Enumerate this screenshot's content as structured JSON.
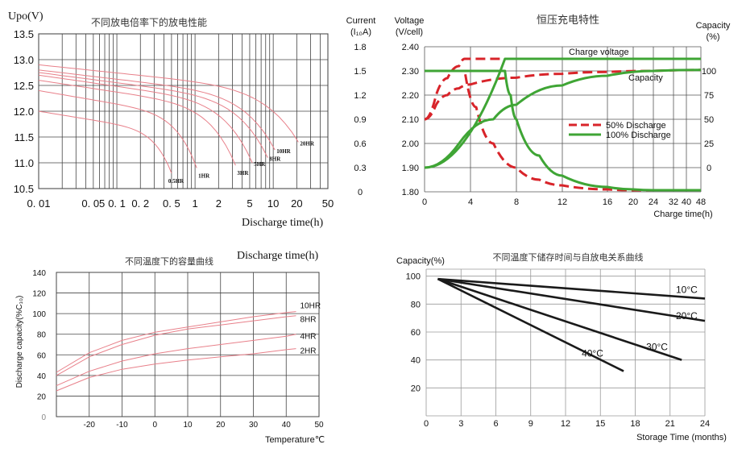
{
  "chart_data": [
    {
      "id": "discharge",
      "type": "line",
      "title": "不同放电倍率下的放电性能",
      "ylabel": "Upo(V)",
      "xlabel": "Discharge time(h)",
      "xscale": "log",
      "xlim": [
        0.01,
        50
      ],
      "ylim": [
        10.5,
        13.5
      ],
      "xticks": [
        0.01,
        0.05,
        0.1,
        0.2,
        0.5,
        1,
        2,
        5,
        10,
        20,
        50
      ],
      "xtick_labels": [
        "0. 01",
        "0. 05",
        "0. 1",
        "0. 2",
        "0. 5",
        "1",
        "2",
        "5",
        "10",
        "20",
        "50"
      ],
      "yticks": [
        10.5,
        11.0,
        11.5,
        12.0,
        12.5,
        13.0,
        13.5
      ],
      "ytick_labels": [
        "10.5",
        "11.0",
        "11.5",
        "12.0",
        "12.5",
        "13.0",
        "13.5"
      ],
      "grid_minor_x": [
        0.02,
        0.03,
        0.04,
        0.06,
        0.07,
        0.08,
        0.09,
        0.3,
        0.4,
        0.6,
        0.7,
        0.8,
        0.9,
        3,
        4,
        6,
        7,
        8,
        9,
        30,
        40
      ],
      "line_color": "#e8808a",
      "series": [
        {
          "name": "0.5HR",
          "label": "0.5HR",
          "v0": 12.0,
          "end": [
            0.5,
            10.8
          ]
        },
        {
          "name": "1HR",
          "label": "1HR",
          "v0": 12.4,
          "end": [
            1.05,
            10.9
          ]
        },
        {
          "name": "3HR",
          "label": "3HR",
          "v0": 12.6,
          "end": [
            3.3,
            10.95
          ]
        },
        {
          "name": "5HR",
          "label": "5HR",
          "v0": 12.7,
          "end": [
            5.4,
            11.0
          ]
        },
        {
          "name": "8HR",
          "label": "8HR",
          "v0": 12.75,
          "end": [
            8.5,
            11.1
          ]
        },
        {
          "name": "10HR",
          "label": "10HR",
          "v0": 12.8,
          "end": [
            10.5,
            11.25
          ]
        },
        {
          "name": "20HR",
          "label": "20HR",
          "v0": 12.9,
          "end": [
            21,
            11.4
          ]
        }
      ]
    },
    {
      "id": "charge",
      "type": "line",
      "title": "恒压充电特性",
      "left_axis_title": [
        "Current",
        "(I₁₀A)"
      ],
      "voltage_axis_title": [
        "Voltage",
        "(V/cell)"
      ],
      "right_axis_title": [
        "Capacity",
        "(%)"
      ],
      "xlabel": "Charge time(h)",
      "xticks": [
        0,
        4,
        8,
        12,
        16,
        20,
        24,
        32,
        40,
        48
      ],
      "xtick_labels": [
        "0",
        "4",
        "8",
        "12",
        "16",
        "20",
        "24",
        "32",
        "40",
        "48"
      ],
      "voltage_ticks": [
        1.8,
        1.9,
        2.0,
        2.1,
        2.2,
        2.3,
        2.4
      ],
      "voltage_tick_labels": [
        "1.80",
        "1.90",
        "2.00",
        "2.10",
        "2.20",
        "2.30",
        "2.40"
      ],
      "current_ticks": [
        0,
        0.3,
        0.6,
        0.9,
        1.2,
        1.5,
        1.8
      ],
      "current_tick_labels": [
        "0",
        "0.3",
        "0.6",
        "0.9",
        "1.2",
        "1.5",
        "1.8"
      ],
      "capacity_ticks": [
        0,
        25,
        50,
        75,
        100
      ],
      "capacity_tick_labels": [
        "0",
        "25",
        "50",
        "75",
        "100"
      ],
      "colors": {
        "discharge50": "#d8242a",
        "discharge100": "#3fa535"
      },
      "legend": [
        "50% Discharge",
        "100% Discharge"
      ],
      "annotations": [
        "Charge voltage",
        "Capacity"
      ],
      "series": [
        {
          "name": "50% charge voltage",
          "style": "dashed",
          "color": "discharge50",
          "x": [
            0,
            1,
            2,
            3,
            3.5,
            4,
            8,
            16,
            48
          ],
          "y": [
            2.1,
            2.2,
            2.27,
            2.32,
            2.35,
            2.35,
            2.35,
            2.35,
            2.35
          ]
        },
        {
          "name": "50% current",
          "style": "dashed",
          "color": "discharge50",
          "x": [
            0,
            3.5,
            4.5,
            6,
            8,
            10,
            12,
            16,
            20,
            24,
            48
          ],
          "y": [
            1.5,
            1.5,
            1.05,
            0.6,
            0.3,
            0.15,
            0.08,
            0.03,
            0.02,
            0.02,
            0.02
          ]
        },
        {
          "name": "50% capacity",
          "style": "dashed",
          "color": "discharge50",
          "x": [
            0,
            1,
            2,
            3,
            4,
            8,
            12,
            16,
            24,
            48
          ],
          "y": [
            50,
            65,
            75,
            82,
            86,
            93,
            97,
            99,
            100,
            101
          ]
        },
        {
          "name": "100% charge voltage",
          "style": "solid",
          "color": "discharge100",
          "x": [
            0,
            7,
            16,
            48
          ],
          "y": [
            1.9,
            2.35,
            2.35,
            2.35
          ]
        },
        {
          "name": "100% current",
          "style": "solid",
          "color": "discharge100",
          "x": [
            0,
            7,
            7.5,
            8,
            10,
            12,
            16,
            20,
            24,
            48
          ],
          "y": [
            1.5,
            1.5,
            1.2,
            0.9,
            0.45,
            0.2,
            0.06,
            0.03,
            0.02,
            0.02
          ]
        },
        {
          "name": "100% capacity",
          "style": "solid",
          "color": "discharge100",
          "x": [
            0,
            3,
            6,
            8,
            12,
            16,
            24,
            48
          ],
          "y": [
            0,
            25,
            50,
            65,
            85,
            95,
            100,
            101
          ]
        }
      ]
    },
    {
      "id": "temperature",
      "type": "line",
      "title": "不同温度下的容量曲线",
      "ylabel": "Discharge capacity(%C₁₀)",
      "xlabel": "Temperature℃",
      "xlim": [
        -30,
        50
      ],
      "ylim": [
        0,
        140
      ],
      "xticks": [
        -20,
        -10,
        0,
        10,
        20,
        30,
        40,
        50
      ],
      "xtick_labels": [
        "-20",
        "-10",
        "0",
        "10",
        "20",
        "30",
        "40",
        "50"
      ],
      "yticks": [
        0,
        20,
        40,
        60,
        80,
        100,
        120,
        140
      ],
      "ytick_labels": [
        "0",
        "20",
        "40",
        "60",
        "80",
        "100",
        "120",
        "140"
      ],
      "line_color": "#e8808a",
      "series": [
        {
          "name": "10HR",
          "label": "10HR",
          "x": [
            -30,
            -20,
            -10,
            0,
            10,
            20,
            30,
            40,
            43
          ],
          "y": [
            43,
            62,
            74,
            82,
            87,
            92,
            97,
            101,
            102
          ]
        },
        {
          "name": "8HR",
          "label": "8HR",
          "x": [
            -30,
            -20,
            -10,
            0,
            10,
            20,
            30,
            40,
            43
          ],
          "y": [
            40,
            58,
            70,
            79,
            85,
            89,
            93,
            97,
            98
          ]
        },
        {
          "name": "4HR",
          "label": "4HR",
          "x": [
            -30,
            -20,
            -10,
            0,
            10,
            20,
            30,
            40,
            43
          ],
          "y": [
            30,
            44,
            54,
            61,
            66,
            70,
            74,
            78,
            80
          ]
        },
        {
          "name": "2HR",
          "label": "2HR",
          "x": [
            -30,
            -20,
            -10,
            0,
            10,
            20,
            30,
            40,
            43
          ],
          "y": [
            25,
            38,
            46,
            51,
            55,
            58,
            61,
            65,
            66
          ]
        }
      ]
    },
    {
      "id": "self_discharge",
      "type": "line",
      "title": "不同温度下储存时间与自放电关系曲线",
      "ylabel": "Capacity(%)",
      "xlabel": "Storage Time (months)",
      "xlim": [
        0,
        24
      ],
      "ylim": [
        0,
        105
      ],
      "xticks": [
        0,
        3,
        6,
        9,
        12,
        15,
        18,
        21,
        24
      ],
      "xtick_labels": [
        "0",
        "3",
        "6",
        "9",
        "12",
        "15",
        "18",
        "21",
        "24"
      ],
      "yticks": [
        20,
        40,
        60,
        80,
        100
      ],
      "ytick_labels": [
        "20",
        "40",
        "60",
        "80",
        "100"
      ],
      "line_color": "#1a1a1a",
      "series": [
        {
          "name": "10°C",
          "label": "10°C",
          "x": [
            1,
            24
          ],
          "y": [
            98,
            84
          ]
        },
        {
          "name": "20°C",
          "label": "20°C",
          "x": [
            1,
            24
          ],
          "y": [
            98,
            68
          ]
        },
        {
          "name": "30°C",
          "label": "30°C",
          "x": [
            1,
            22
          ],
          "y": [
            98,
            40
          ]
        },
        {
          "name": "40°C",
          "label": "40°C",
          "x": [
            1,
            17
          ],
          "y": [
            98,
            32
          ]
        }
      ]
    }
  ],
  "stray_text": "Discharge time(h)"
}
